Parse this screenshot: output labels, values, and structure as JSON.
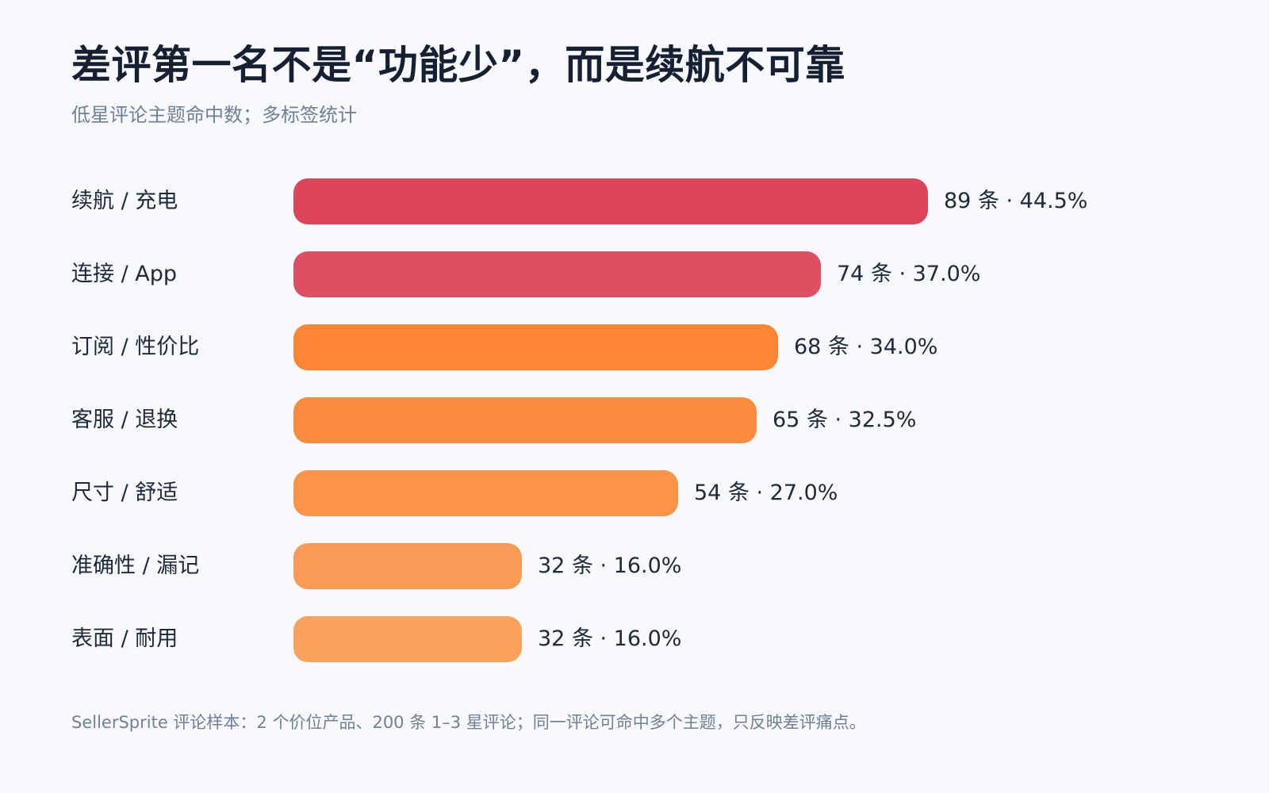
{
  "chart": {
    "title": "差评第一名不是“功能少”，而是续航不可靠",
    "subtitle": "低星评论主题命中数；多标签统计",
    "footnote": "SellerSprite 评论样本：2 个价位产品、200 条 1–3 星评论；同一评论可命中多个主题，只反映差评痛点。"
  },
  "chart_data": {
    "type": "bar",
    "orientation": "horizontal",
    "title": "差评第一名不是“功能少”，而是续航不可靠",
    "subtitle": "低星评论主题命中数；多标签统计",
    "xlabel": "",
    "ylabel": "",
    "xlim": [
      0,
      89
    ],
    "grid": false,
    "legend": "none",
    "categories": [
      "续航 / 充电",
      "连接 / App",
      "订阅 / 性价比",
      "客服 / 退换",
      "尺寸 / 舒适",
      "准确性 / 漏记",
      "表面 / 耐用"
    ],
    "values": [
      89,
      74,
      68,
      65,
      54,
      32,
      32
    ],
    "data_labels": [
      "89 条 · 44.5%",
      "74 条 · 37.0%",
      "68 条 · 34.0%",
      "65 条 · 32.5%",
      "54 条 · 27.0%",
      "32 条 · 16.0%",
      "32 条 · 16.0%"
    ],
    "colors": [
      "#dd4559",
      "#df4f63",
      "#fd8534",
      "#fb8c3e",
      "#fa9449",
      "#f99b55",
      "#f9a25e"
    ]
  }
}
